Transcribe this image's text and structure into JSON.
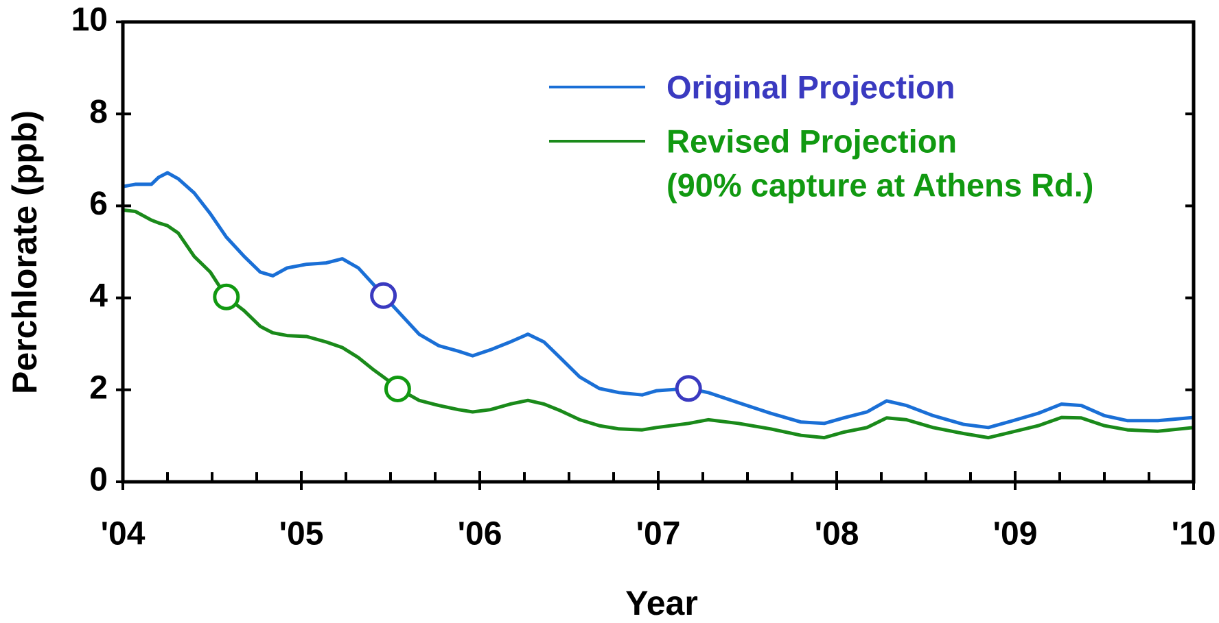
{
  "chart_data": {
    "type": "line",
    "x_label": "Year",
    "y_label": "Perchlorate (ppb)",
    "xlim": [
      2004,
      2010
    ],
    "xticks": [
      {
        "value": 2004,
        "label": "'04"
      },
      {
        "value": 2005,
        "label": "'05"
      },
      {
        "value": 2006,
        "label": "'06"
      },
      {
        "value": 2007,
        "label": "'07"
      },
      {
        "value": 2008,
        "label": "'08"
      },
      {
        "value": 2009,
        "label": "'09"
      },
      {
        "value": 2010,
        "label": "'10"
      }
    ],
    "minor_xticks": [
      2004.25,
      2004.5,
      2004.75,
      2005.25,
      2005.5,
      2005.75,
      2006.25,
      2006.5,
      2006.75,
      2007.25,
      2007.5,
      2007.75,
      2008.25,
      2008.5,
      2008.75,
      2009.25,
      2009.5,
      2009.75
    ],
    "ylim": [
      0,
      10
    ],
    "yticks": [
      0,
      2,
      4,
      6,
      8,
      10
    ],
    "legend_position": "upper right",
    "x": [
      2004.0,
      2004.07,
      2004.16,
      2004.2,
      2004.25,
      2004.31,
      2004.4,
      2004.49,
      2004.58,
      2004.68,
      2004.77,
      2004.84,
      2004.92,
      2005.03,
      2005.14,
      2005.23,
      2005.32,
      2005.4,
      2005.46,
      2005.56,
      2005.66,
      2005.77,
      2005.88,
      2005.96,
      2006.06,
      2006.17,
      2006.27,
      2006.36,
      2006.45,
      2006.56,
      2006.67,
      2006.78,
      2006.91,
      2006.99,
      2007.17,
      2007.28,
      2007.45,
      2007.63,
      2007.8,
      2007.93,
      2008.04,
      2008.17,
      2008.28,
      2008.39,
      2008.54,
      2008.71,
      2008.85,
      2008.98,
      2009.13,
      2009.26,
      2009.37,
      2009.5,
      2009.63,
      2009.8,
      2010.0
    ],
    "series": [
      {
        "name": "Original Projection",
        "color": "#1a6fd6",
        "label_color": "#3a3ac0",
        "values": [
          6.42,
          6.47,
          6.47,
          6.62,
          6.72,
          6.59,
          6.28,
          5.83,
          5.32,
          4.9,
          4.56,
          4.48,
          4.65,
          4.73,
          4.76,
          4.85,
          4.65,
          4.31,
          4.05,
          3.63,
          3.21,
          2.96,
          2.84,
          2.74,
          2.87,
          3.04,
          3.21,
          3.04,
          2.7,
          2.28,
          2.03,
          1.94,
          1.89,
          1.98,
          2.03,
          1.94,
          1.72,
          1.49,
          1.3,
          1.27,
          1.39,
          1.52,
          1.76,
          1.66,
          1.44,
          1.25,
          1.18,
          1.32,
          1.49,
          1.69,
          1.66,
          1.44,
          1.33,
          1.33,
          1.4
        ],
        "markers": {
          "x": [
            2005.46,
            2007.17
          ],
          "values": [
            4.05,
            2.03
          ]
        }
      },
      {
        "name": "Revised Projection",
        "legend_note": "(90% capture at Athens Rd.)",
        "color": "#1a8a1a",
        "label_color": "#119911",
        "values": [
          5.91,
          5.88,
          5.69,
          5.63,
          5.57,
          5.41,
          4.9,
          4.56,
          4.02,
          3.72,
          3.38,
          3.24,
          3.18,
          3.16,
          3.04,
          2.92,
          2.7,
          2.45,
          2.28,
          1.99,
          1.77,
          1.66,
          1.57,
          1.52,
          1.57,
          1.69,
          1.77,
          1.69,
          1.55,
          1.35,
          1.22,
          1.15,
          1.13,
          1.18,
          1.27,
          1.35,
          1.27,
          1.15,
          1.01,
          0.96,
          1.08,
          1.18,
          1.39,
          1.35,
          1.18,
          1.05,
          0.96,
          1.08,
          1.22,
          1.4,
          1.39,
          1.22,
          1.13,
          1.1,
          1.18
        ],
        "markers": {
          "x": [
            2004.58,
            2005.54
          ],
          "values": [
            4.02,
            2.02
          ]
        }
      }
    ]
  }
}
